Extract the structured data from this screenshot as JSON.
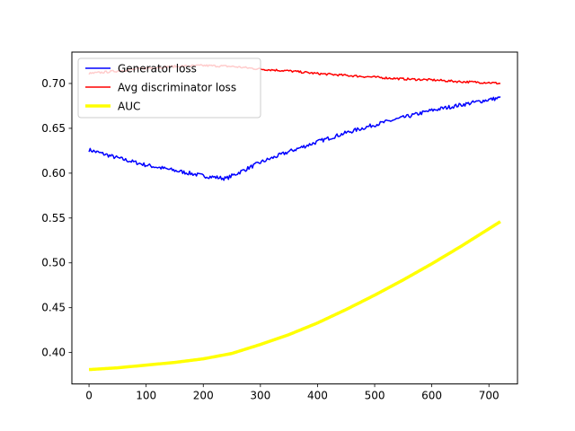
{
  "chart_data": {
    "type": "line",
    "title": "",
    "xlabel": "",
    "ylabel": "",
    "xlim": [
      -30,
      750
    ],
    "ylim": [
      0.365,
      0.735
    ],
    "xticks": [
      0,
      100,
      200,
      300,
      400,
      500,
      600,
      700
    ],
    "yticks": [
      0.4,
      0.45,
      0.5,
      0.55,
      0.6,
      0.65,
      0.7
    ],
    "xtick_labels": [
      "0",
      "100",
      "200",
      "300",
      "400",
      "500",
      "600",
      "700"
    ],
    "ytick_labels": [
      "0.40",
      "0.45",
      "0.50",
      "0.55",
      "0.60",
      "0.65",
      "0.70"
    ],
    "grid": false,
    "legend": {
      "position": "upper-left",
      "entries": [
        "Generator loss",
        "Avg discriminator loss",
        "AUC"
      ]
    },
    "series": [
      {
        "name": "Generator loss",
        "color": "#0000ff",
        "x": [
          0,
          50,
          100,
          150,
          200,
          240,
          260,
          300,
          350,
          400,
          450,
          500,
          550,
          600,
          650,
          700,
          720
        ],
        "y": [
          0.626,
          0.617,
          0.609,
          0.603,
          0.597,
          0.594,
          0.6,
          0.612,
          0.624,
          0.635,
          0.645,
          0.654,
          0.662,
          0.67,
          0.676,
          0.682,
          0.684
        ]
      },
      {
        "name": "Avg discriminator loss",
        "color": "#ff0000",
        "x": [
          0,
          50,
          100,
          150,
          200,
          250,
          300,
          350,
          400,
          450,
          500,
          550,
          600,
          650,
          700,
          720
        ],
        "y": [
          0.711,
          0.714,
          0.717,
          0.719,
          0.72,
          0.719,
          0.716,
          0.714,
          0.711,
          0.709,
          0.707,
          0.705,
          0.704,
          0.702,
          0.701,
          0.7
        ]
      },
      {
        "name": "AUC",
        "color": "#ffff00",
        "x": [
          0,
          50,
          100,
          150,
          200,
          250,
          300,
          350,
          400,
          450,
          500,
          550,
          600,
          650,
          700,
          720
        ],
        "y": [
          0.381,
          0.383,
          0.386,
          0.389,
          0.393,
          0.399,
          0.409,
          0.42,
          0.433,
          0.448,
          0.464,
          0.481,
          0.499,
          0.518,
          0.538,
          0.546
        ]
      }
    ]
  }
}
